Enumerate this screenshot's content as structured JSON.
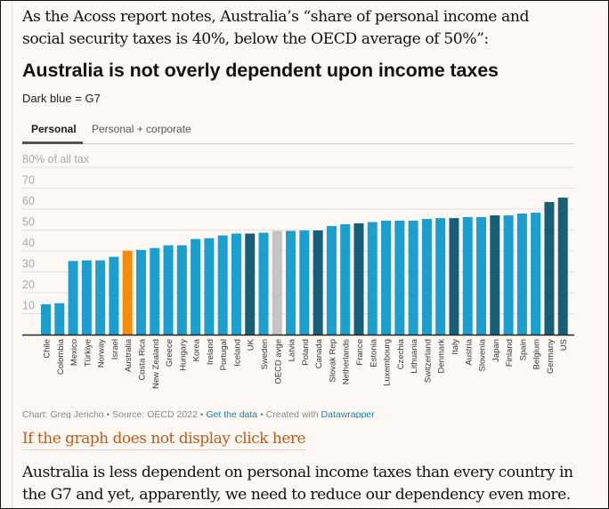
{
  "article": {
    "intro_paragraph": "As the Acoss report notes, Australia’s “share of personal income and social security taxes is 40%, below the OECD average of 50%”:",
    "fallback_link": "If the graph does not display click here",
    "outro_paragraph": "Australia is less dependent on personal income taxes than every country in the G7 and yet, apparently, we need to reduce our dependency even more."
  },
  "chart_header": {
    "title": "Australia is not overly dependent upon income taxes",
    "description": "Dark blue = G7"
  },
  "tabs": [
    {
      "label": "Personal",
      "active": true
    },
    {
      "label": "Personal + corporate",
      "active": false
    }
  ],
  "footer": {
    "credit": "Chart: Greg Jericho • Source: OECD 2022 • ",
    "get_data": "Get the data",
    "sep": " • Created with ",
    "tool": "Datawrapper"
  },
  "colors": {
    "default": "#1b9fcf",
    "g7": "#175e78",
    "australia": "#f68b0c",
    "oecd": "#c4c4c4",
    "gridline": "#e4e0dc",
    "axis_text": "#aaaaaa"
  },
  "chart_data": {
    "type": "bar",
    "title": "Australia is not overly dependent upon income taxes",
    "subtitle": "Dark blue = G7",
    "xlabel": "",
    "ylabel": "% of all tax",
    "ylim": [
      0,
      80
    ],
    "yticks": [
      10,
      20,
      30,
      40,
      50,
      60,
      70,
      80
    ],
    "ytick_labels": [
      "10",
      "20",
      "30",
      "40",
      "50",
      "60",
      "70",
      "80% of all tax"
    ],
    "grid": true,
    "categories": [
      "Chile",
      "Colombia",
      "Mexico",
      "Türkiye",
      "Norway",
      "Israel",
      "Australia",
      "Costa Rica",
      "New Zealand",
      "Greece",
      "Hungary",
      "Korea",
      "Ireland",
      "Portugal",
      "Iceland",
      "UK",
      "Sweden",
      "OECD avge",
      "Latvia",
      "Poland",
      "Canada",
      "Slovak Rep",
      "Netherlands",
      "France",
      "Estonia",
      "Luxembourg",
      "Czechia",
      "Lithuania",
      "Switzerland",
      "Denmark",
      "Italy",
      "Austria",
      "Slovenia",
      "Japan",
      "Finland",
      "Spain",
      "Belgium",
      "Germany",
      "US"
    ],
    "values": [
      14.5,
      15.0,
      35.2,
      35.5,
      35.5,
      37.2,
      40.1,
      40.5,
      41.4,
      42.7,
      42.7,
      45.7,
      46.1,
      47.4,
      48.3,
      48.3,
      48.7,
      49.6,
      49.6,
      49.8,
      49.8,
      51.9,
      52.8,
      53.2,
      53.8,
      54.5,
      54.5,
      54.5,
      55.3,
      55.7,
      55.7,
      56.2,
      56.2,
      57.0,
      57.0,
      57.9,
      58.3,
      63.4,
      65.5
    ],
    "groups": [
      "default",
      "default",
      "default",
      "default",
      "default",
      "default",
      "australia",
      "default",
      "default",
      "default",
      "default",
      "default",
      "default",
      "default",
      "default",
      "g7",
      "default",
      "oecd",
      "default",
      "default",
      "g7",
      "default",
      "default",
      "g7",
      "default",
      "default",
      "default",
      "default",
      "default",
      "default",
      "g7",
      "default",
      "default",
      "g7",
      "default",
      "default",
      "default",
      "g7",
      "g7"
    ],
    "legend": "Dark blue = G7"
  }
}
